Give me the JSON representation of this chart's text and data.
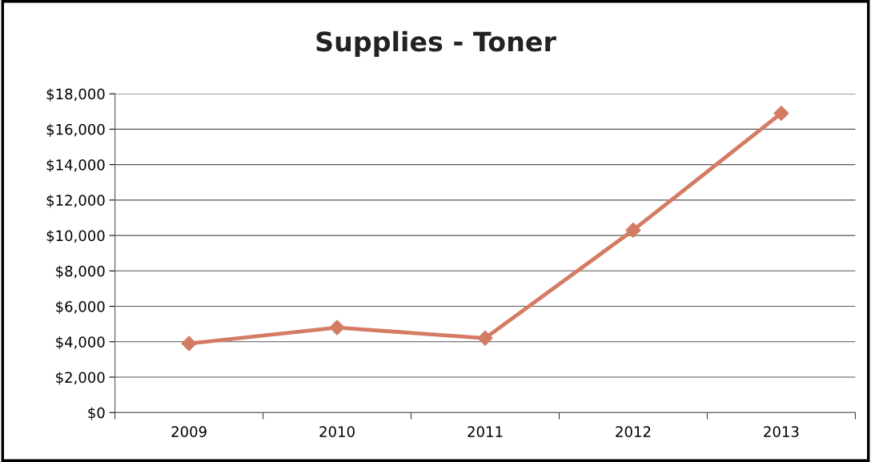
{
  "chart_data": {
    "type": "line",
    "title": "Supplies - Toner",
    "categories": [
      "2009",
      "2010",
      "2011",
      "2012",
      "2013"
    ],
    "series": [
      {
        "color": "#d47c63",
        "values": [
          3900,
          4800,
          4200,
          10300,
          16900
        ]
      }
    ],
    "ylim": [
      0,
      18000
    ],
    "yticks": [
      {
        "value": 0,
        "label": "$0"
      },
      {
        "value": 2000,
        "label": "$2,000"
      },
      {
        "value": 4000,
        "label": "$4,000"
      },
      {
        "value": 6000,
        "label": "$6,000"
      },
      {
        "value": 8000,
        "label": "$8,000"
      },
      {
        "value": 10000,
        "label": "$10,000"
      },
      {
        "value": 12000,
        "label": "$12,000"
      },
      {
        "value": 14000,
        "label": "$14,000"
      },
      {
        "value": 16000,
        "label": "$16,000"
      },
      {
        "value": 18000,
        "label": "$18,000"
      }
    ],
    "grid": "y",
    "marker": "diamond",
    "line_style": "solid",
    "legend": false
  }
}
